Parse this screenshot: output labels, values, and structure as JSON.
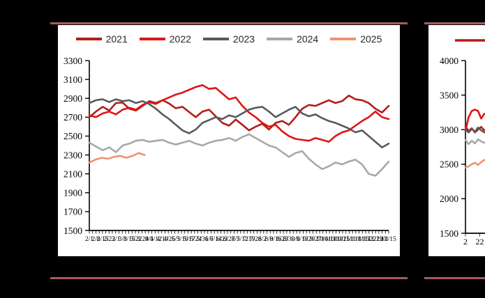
{
  "background_color": "#000000",
  "frame": {
    "rule_color": "#A85A5A"
  },
  "legend": {
    "items": [
      {
        "label": "2021",
        "color": "#B41C1C"
      },
      {
        "label": "2022",
        "color": "#E01414"
      },
      {
        "label": "2023",
        "color": "#595959"
      },
      {
        "label": "2024",
        "color": "#A8A8A8"
      },
      {
        "label": "2025",
        "color": "#F0926E"
      }
    ]
  },
  "chart_data": [
    {
      "id": "left-seasonal-chart",
      "type": "line",
      "title": "",
      "xlabel": "",
      "ylabel": "",
      "grid": false,
      "legend_position": "top",
      "legend_entries": [
        "2021",
        "2022",
        "2023",
        "2024",
        "2025"
      ],
      "ylim": [
        1500,
        3300
      ],
      "yticks": [
        3300,
        3100,
        2900,
        2700,
        2500,
        2300,
        2100,
        1900,
        1700,
        1500
      ],
      "x_axis_labels": [
        "2/1",
        "2/8",
        "2/15",
        "2/22",
        "3/1",
        "3/8",
        "3/15",
        "3/22",
        "3/29",
        "4/5",
        "4/12",
        "4/19",
        "4/26",
        "5/3",
        "5/10",
        "5/17",
        "5/24",
        "5/31",
        "6/7",
        "6/14",
        "6/21",
        "6/28",
        "7/5",
        "7/12",
        "7/19",
        "7/26",
        "8/2",
        "8/9",
        "8/16",
        "8/23",
        "8/30",
        "9/6",
        "9/13",
        "9/20",
        "9/27",
        "10/4",
        "10/11",
        "10/18",
        "10/25",
        "11/1",
        "11/8",
        "11/15",
        "11/22",
        "11/29",
        "12/8",
        "12/15"
      ],
      "series": [
        {
          "name": "2021",
          "color": "#B41C1C",
          "t_end": 1,
          "values": [
            2700,
            2760,
            2810,
            2770,
            2850,
            2855,
            2790,
            2770,
            2820,
            2870,
            2850,
            2880,
            2845,
            2795,
            2810,
            2755,
            2700,
            2760,
            2780,
            2710,
            2640,
            2610,
            2675,
            2620,
            2560,
            2600,
            2630,
            2570,
            2640,
            2660,
            2620,
            2700,
            2790,
            2830,
            2820,
            2850,
            2880,
            2850,
            2870,
            2930,
            2890,
            2880,
            2850,
            2790,
            2750,
            2820
          ]
        },
        {
          "name": "2022",
          "color": "#E01414",
          "t_end": 1,
          "values": [
            2720,
            2700,
            2740,
            2760,
            2730,
            2780,
            2800,
            2780,
            2830,
            2860,
            2840,
            2880,
            2910,
            2940,
            2960,
            2990,
            3020,
            3040,
            3000,
            3010,
            2950,
            2890,
            2910,
            2820,
            2750,
            2700,
            2640,
            2600,
            2620,
            2550,
            2500,
            2470,
            2460,
            2450,
            2480,
            2460,
            2440,
            2500,
            2540,
            2560,
            2610,
            2660,
            2700,
            2760,
            2700,
            2680
          ]
        },
        {
          "name": "2023",
          "color": "#595959",
          "t_end": 1,
          "values": [
            2850,
            2880,
            2890,
            2860,
            2890,
            2870,
            2880,
            2850,
            2870,
            2840,
            2790,
            2730,
            2680,
            2620,
            2560,
            2530,
            2570,
            2640,
            2670,
            2700,
            2680,
            2720,
            2700,
            2740,
            2780,
            2800,
            2810,
            2760,
            2700,
            2740,
            2780,
            2810,
            2740,
            2710,
            2730,
            2690,
            2660,
            2640,
            2610,
            2580,
            2540,
            2560,
            2500,
            2440,
            2380,
            2420
          ]
        },
        {
          "name": "2024",
          "color": "#A8A8A8",
          "t_end": 1,
          "values": [
            2430,
            2390,
            2350,
            2380,
            2330,
            2400,
            2420,
            2450,
            2460,
            2440,
            2450,
            2460,
            2430,
            2410,
            2430,
            2450,
            2420,
            2400,
            2430,
            2450,
            2460,
            2480,
            2450,
            2490,
            2520,
            2480,
            2440,
            2400,
            2380,
            2330,
            2280,
            2320,
            2340,
            2260,
            2200,
            2150,
            2180,
            2220,
            2200,
            2230,
            2250,
            2200,
            2100,
            2080,
            2150,
            2230
          ]
        },
        {
          "name": "2025",
          "color": "#F0926E",
          "t_end": 0.185,
          "values": [
            2220,
            2250,
            2270,
            2260,
            2280,
            2290,
            2270,
            2290,
            2320,
            2300
          ]
        }
      ]
    },
    {
      "id": "right-seasonal-chart-partial",
      "type": "line",
      "title": "",
      "xlabel": "",
      "ylabel": "",
      "grid": false,
      "clipped_at_right_edge": true,
      "ylim": [
        1500,
        4000
      ],
      "yticks": [
        4000,
        3500,
        3000,
        2500,
        2000,
        1500
      ],
      "x_axis_labels": [
        "2",
        "22"
      ],
      "series": [
        {
          "name": "2021",
          "color": "#B41C1C",
          "t_end": 0.063,
          "values": [
            3050,
            2980,
            3020,
            2960,
            3000,
            3040,
            2990
          ]
        },
        {
          "name": "2022",
          "color": "#E01414",
          "t_end": 0.063,
          "values": [
            2980,
            3180,
            3270,
            3290,
            3270,
            3160,
            3230
          ]
        },
        {
          "name": "2023",
          "color": "#595959",
          "t_end": 0.063,
          "values": [
            3000,
            2960,
            3010,
            2970,
            3030,
            2990,
            2960
          ]
        },
        {
          "name": "2024",
          "color": "#A8A8A8",
          "t_end": 0.063,
          "values": [
            2850,
            2790,
            2840,
            2800,
            2860,
            2830,
            2810
          ]
        },
        {
          "name": "2025",
          "color": "#F0926E",
          "t_end": 0.063,
          "values": [
            2450,
            2470,
            2500,
            2520,
            2490,
            2530,
            2560
          ]
        }
      ]
    }
  ]
}
